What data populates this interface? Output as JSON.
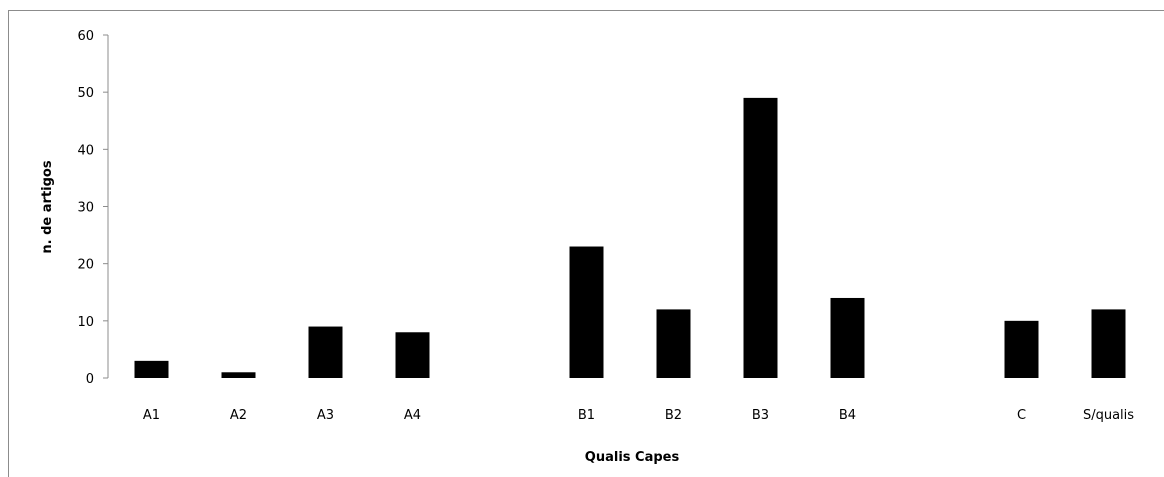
{
  "chart_data": {
    "type": "bar",
    "categories": [
      "A1",
      "A2",
      "A3",
      "A4",
      "",
      "B1",
      "B2",
      "B3",
      "B4",
      "",
      "C",
      "S/qualis"
    ],
    "values": [
      3,
      1,
      9,
      8,
      null,
      23,
      12,
      49,
      14,
      null,
      10,
      12
    ],
    "title": "",
    "xlabel": "Qualis Capes",
    "ylabel": "n. de artigos",
    "ylim": [
      0,
      60
    ],
    "yticks": [
      0,
      10,
      20,
      30,
      40,
      50,
      60
    ],
    "grid": false,
    "legend": "none",
    "bar_color": "#000000"
  }
}
